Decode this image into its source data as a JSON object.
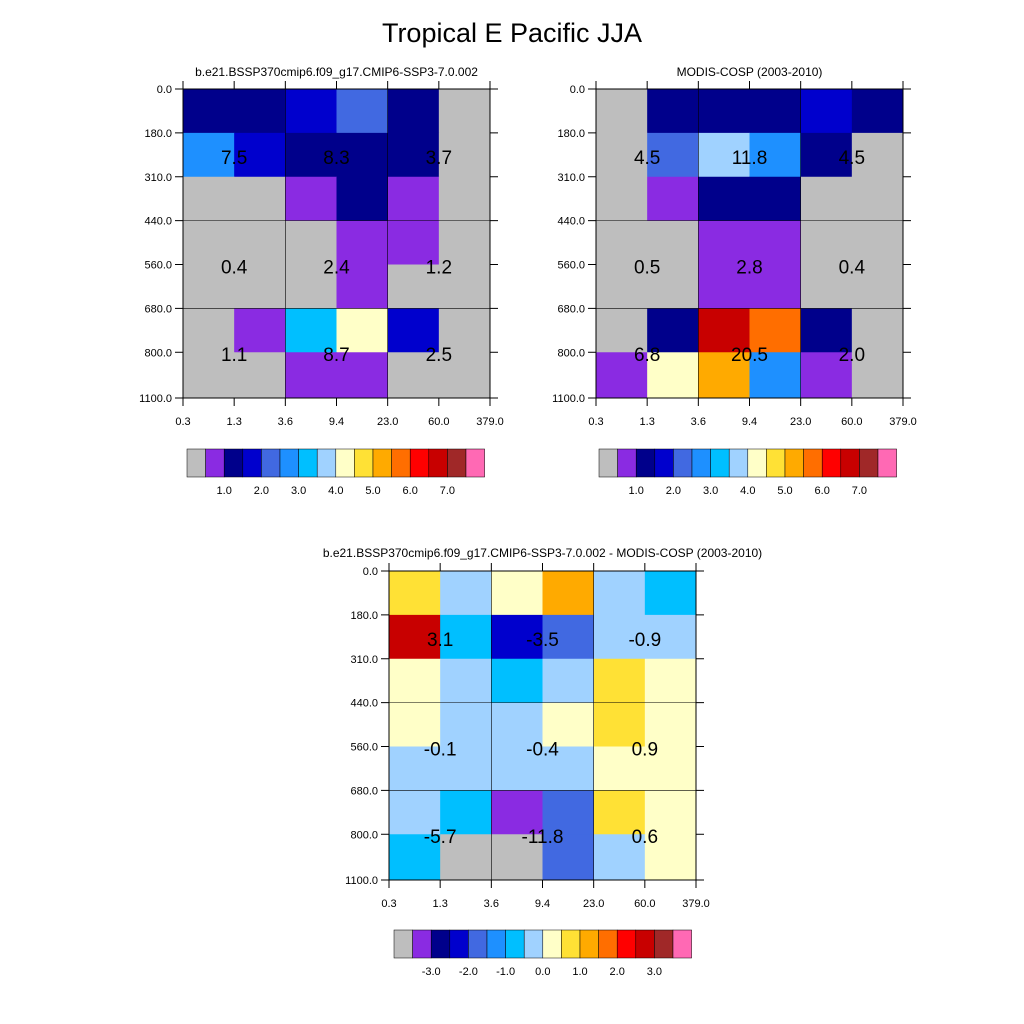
{
  "chart_data": {
    "type": "heatmap",
    "title": "Tropical E Pacific JJA",
    "x_ticks": [
      "0.3",
      "1.3",
      "3.6",
      "9.4",
      "23.0",
      "60.0",
      "379.0"
    ],
    "y_ticks": [
      "0.0",
      "180.0",
      "310.0",
      "440.0",
      "560.0",
      "680.0",
      "800.0",
      "1100.0"
    ],
    "panels": [
      {
        "name": "model",
        "title": "b.e21.BSSP370cmip6.f09_g17.CMIP6-SSP3-7.0.002",
        "colorbar": {
          "colors": [
            "#BEBEBE",
            "#8A2BE2",
            "#00008B",
            "#0000CD",
            "#4169E1",
            "#1E90FF",
            "#00BFFF",
            "#A0D2FF",
            "#FFFFC8",
            "#FFE135",
            "#FFAA00",
            "#FF6E00",
            "#FF0000",
            "#C80000",
            "#A02828",
            "#FF69B4"
          ],
          "labels": [
            "1.0",
            "2.0",
            "3.0",
            "4.0",
            "5.0",
            "6.0",
            "7.0"
          ]
        },
        "cells": [
          [
            "#00008B",
            "#00008B",
            "#0000CD",
            "#4169E1",
            "#00008B",
            "#BEBEBE"
          ],
          [
            "#1E90FF",
            "#0000CD",
            "#00008B",
            "#00008B",
            "#00008B",
            "#BEBEBE"
          ],
          [
            "#BEBEBE",
            "#BEBEBE",
            "#8A2BE2",
            "#00008B",
            "#8A2BE2",
            "#BEBEBE"
          ],
          [
            "#BEBEBE",
            "#BEBEBE",
            "#BEBEBE",
            "#8A2BE2",
            "#8A2BE2",
            "#BEBEBE"
          ],
          [
            "#BEBEBE",
            "#BEBEBE",
            "#BEBEBE",
            "#8A2BE2",
            "#BEBEBE",
            "#BEBEBE"
          ],
          [
            "#BEBEBE",
            "#8A2BE2",
            "#00BFFF",
            "#FFFFC8",
            "#0000CD",
            "#BEBEBE"
          ],
          [
            "#BEBEBE",
            "#BEBEBE",
            "#8A2BE2",
            "#8A2BE2",
            "#BEBEBE",
            "#BEBEBE"
          ]
        ],
        "labels": [
          [
            "7.5",
            "8.3",
            "3.7"
          ],
          [
            "0.4",
            "2.4",
            "1.2"
          ],
          [
            "1.1",
            "8.7",
            "2.5"
          ]
        ]
      },
      {
        "name": "obs",
        "title": "MODIS-COSP (2003-2010)",
        "colorbar": {
          "colors": [
            "#BEBEBE",
            "#8A2BE2",
            "#00008B",
            "#0000CD",
            "#4169E1",
            "#1E90FF",
            "#00BFFF",
            "#A0D2FF",
            "#FFFFC8",
            "#FFE135",
            "#FFAA00",
            "#FF6E00",
            "#FF0000",
            "#C80000",
            "#A02828",
            "#FF69B4"
          ],
          "labels": [
            "1.0",
            "2.0",
            "3.0",
            "4.0",
            "5.0",
            "6.0",
            "7.0"
          ]
        },
        "cells": [
          [
            "#BEBEBE",
            "#00008B",
            "#00008B",
            "#00008B",
            "#0000CD",
            "#00008B"
          ],
          [
            "#BEBEBE",
            "#4169E1",
            "#A0D2FF",
            "#1E90FF",
            "#00008B",
            "#BEBEBE"
          ],
          [
            "#BEBEBE",
            "#8A2BE2",
            "#00008B",
            "#00008B",
            "#BEBEBE",
            "#BEBEBE"
          ],
          [
            "#BEBEBE",
            "#BEBEBE",
            "#8A2BE2",
            "#8A2BE2",
            "#BEBEBE",
            "#BEBEBE"
          ],
          [
            "#BEBEBE",
            "#BEBEBE",
            "#8A2BE2",
            "#8A2BE2",
            "#BEBEBE",
            "#BEBEBE"
          ],
          [
            "#BEBEBE",
            "#00008B",
            "#C80000",
            "#FF6E00",
            "#00008B",
            "#BEBEBE"
          ],
          [
            "#8A2BE2",
            "#FFFFC8",
            "#FFAA00",
            "#1E90FF",
            "#8A2BE2",
            "#BEBEBE"
          ]
        ],
        "labels": [
          [
            "4.5",
            "11.8",
            "4.5"
          ],
          [
            "0.5",
            "2.8",
            "0.4"
          ],
          [
            "6.8",
            "20.5",
            "2.0"
          ]
        ]
      },
      {
        "name": "diff",
        "title": "b.e21.BSSP370cmip6.f09_g17.CMIP6-SSP3-7.0.002 - MODIS-COSP (2003-2010)",
        "colorbar": {
          "colors": [
            "#BEBEBE",
            "#8A2BE2",
            "#00008B",
            "#0000CD",
            "#4169E1",
            "#1E90FF",
            "#00BFFF",
            "#A0D2FF",
            "#FFFFC8",
            "#FFE135",
            "#FFAA00",
            "#FF6E00",
            "#FF0000",
            "#C80000",
            "#A02828",
            "#FF69B4"
          ],
          "labels": [
            "-3.0",
            "-2.0",
            "-1.0",
            "0.0",
            "1.0",
            "2.0",
            "3.0"
          ]
        },
        "cells": [
          [
            "#FFE135",
            "#A0D2FF",
            "#FFFFC8",
            "#FFAA00",
            "#A0D2FF",
            "#00BFFF"
          ],
          [
            "#C80000",
            "#00BFFF",
            "#0000CD",
            "#4169E1",
            "#A0D2FF",
            "#A0D2FF"
          ],
          [
            "#FFFFC8",
            "#A0D2FF",
            "#00BFFF",
            "#A0D2FF",
            "#FFE135",
            "#FFFFC8"
          ],
          [
            "#FFFFC8",
            "#A0D2FF",
            "#A0D2FF",
            "#FFFFC8",
            "#FFE135",
            "#FFFFC8"
          ],
          [
            "#A0D2FF",
            "#A0D2FF",
            "#A0D2FF",
            "#A0D2FF",
            "#FFFFC8",
            "#FFFFC8"
          ],
          [
            "#A0D2FF",
            "#00BFFF",
            "#8A2BE2",
            "#4169E1",
            "#FFE135",
            "#FFFFC8"
          ],
          [
            "#00BFFF",
            "#BEBEBE",
            "#BEBEBE",
            "#4169E1",
            "#A0D2FF",
            "#FFFFC8"
          ]
        ],
        "labels": [
          [
            "3.1",
            "-3.5",
            "-0.9"
          ],
          [
            "-0.1",
            "-0.4",
            "0.9"
          ],
          [
            "-5.7",
            "-11.8",
            "0.6"
          ]
        ]
      }
    ]
  }
}
